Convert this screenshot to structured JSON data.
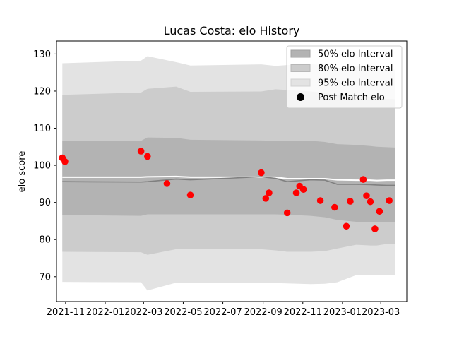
{
  "chart_data": {
    "type": "line",
    "title": "Lucas Costa: elo History",
    "xlabel": "",
    "ylabel": "elo score",
    "xlim": [
      "2021-10-18",
      "2023-04-10"
    ],
    "ylim": [
      63.3,
      133.5
    ],
    "x_ticks": [
      "2021-11",
      "2022-01",
      "2022-03",
      "2022-05",
      "2022-07",
      "2022-09",
      "2022-11",
      "2023-01",
      "2023-03"
    ],
    "x_tick_dates": [
      "2021-11-01",
      "2022-01-01",
      "2022-03-01",
      "2022-05-01",
      "2022-07-01",
      "2022-09-01",
      "2022-11-01",
      "2023-01-01",
      "2023-03-01"
    ],
    "y_ticks": [
      70,
      80,
      90,
      100,
      110,
      120,
      130
    ],
    "legend": {
      "position": "upper right",
      "entries": [
        "50% elo Interval",
        "80% elo Interval",
        "95% elo Interval",
        "Post Match elo"
      ]
    },
    "colors": {
      "band50": "#b3b3b3",
      "band80": "#cccccc",
      "band95": "#e3e3e3",
      "mean_line": "#808080",
      "white_line": "#ffffff",
      "points": "#ff0000"
    },
    "bands": {
      "x": [
        "2021-10-27",
        "2022-02-25",
        "2022-03-07",
        "2022-04-20",
        "2022-05-12",
        "2022-08-29",
        "2022-09-20",
        "2022-10-08",
        "2022-11-13",
        "2022-12-05",
        "2022-12-24",
        "2023-01-22",
        "2023-02-13",
        "2023-02-23",
        "2023-03-10",
        "2023-03-23"
      ],
      "p95_upper": [
        127.5,
        128.2,
        129.4,
        127.8,
        126.9,
        127.2,
        126.8,
        127.0,
        127.3,
        126.9,
        126.2,
        126.6,
        127.0,
        126.5,
        125.6,
        125.8
      ],
      "p80_upper": [
        119.0,
        119.6,
        120.6,
        121.2,
        119.8,
        119.9,
        120.5,
        120.3,
        119.9,
        119.5,
        118.9,
        118.8,
        118.5,
        118.2,
        117.9,
        117.8
      ],
      "p50_upper": [
        106.6,
        106.6,
        107.5,
        107.4,
        106.9,
        106.7,
        106.6,
        106.6,
        106.6,
        106.3,
        105.7,
        105.5,
        105.2,
        105.0,
        104.9,
        104.8
      ],
      "mean": [
        95.6,
        95.5,
        95.6,
        96.3,
        96.1,
        96.9,
        96.5,
        95.6,
        96.1,
        96.0,
        94.9,
        94.9,
        94.8,
        94.7,
        94.6,
        94.6
      ],
      "p50_lower": [
        86.6,
        86.4,
        86.8,
        86.8,
        86.8,
        86.8,
        86.8,
        86.7,
        86.4,
        86.0,
        85.3,
        84.8,
        84.7,
        84.7,
        84.6,
        84.7
      ],
      "p80_lower": [
        76.7,
        76.6,
        75.9,
        77.4,
        77.4,
        77.4,
        77.1,
        76.7,
        76.7,
        76.9,
        77.6,
        78.6,
        78.4,
        78.4,
        78.8,
        78.8
      ],
      "p95_lower": [
        68.6,
        68.5,
        66.3,
        68.4,
        68.4,
        68.4,
        68.3,
        68.2,
        68.0,
        68.1,
        68.5,
        70.4,
        70.4,
        70.4,
        70.5,
        70.5
      ],
      "white_line": [
        96.8,
        96.8,
        96.9,
        97.0,
        96.8,
        96.8,
        96.8,
        96.4,
        96.4,
        96.4,
        96.1,
        96.0,
        96.0,
        95.9,
        96.0,
        96.0
      ]
    },
    "series": [
      {
        "name": "Post Match elo",
        "x": [
          "2021-10-27",
          "2021-10-31",
          "2022-02-25",
          "2022-03-07",
          "2022-04-06",
          "2022-05-12",
          "2022-08-29",
          "2022-09-05",
          "2022-09-10",
          "2022-10-08",
          "2022-10-22",
          "2022-10-27",
          "2022-11-02",
          "2022-11-28",
          "2022-12-20",
          "2023-01-07",
          "2023-01-13",
          "2023-02-02",
          "2023-02-07",
          "2023-02-13",
          "2023-02-20",
          "2023-02-27",
          "2023-03-14"
        ],
        "y": [
          102.0,
          101.0,
          103.8,
          102.4,
          95.1,
          92.0,
          98.0,
          91.1,
          92.6,
          87.2,
          92.6,
          94.4,
          93.5,
          90.5,
          88.7,
          83.6,
          90.3,
          96.2,
          91.8,
          90.2,
          82.9,
          87.6,
          90.5
        ]
      }
    ]
  }
}
